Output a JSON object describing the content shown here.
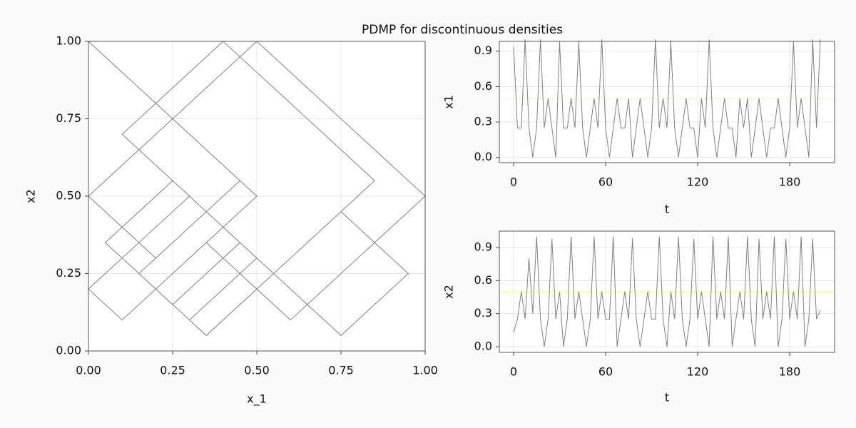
{
  "title": "PDMP for discontinuous densities",
  "chart_data": [
    {
      "type": "line",
      "xlabel": "x_1",
      "ylabel": "x2",
      "color": "#808080",
      "grid": true,
      "xlim": [
        0,
        1
      ],
      "ylim": [
        0,
        1
      ],
      "xticks": [
        {
          "value": 0,
          "label": "0.00"
        },
        {
          "value": 0.25,
          "label": "0.25"
        },
        {
          "value": 0.5,
          "label": "0.50"
        },
        {
          "value": 0.75,
          "label": "0.75"
        },
        {
          "value": 1,
          "label": "1.00"
        }
      ],
      "yticks": [
        {
          "value": 0,
          "label": "0.00"
        },
        {
          "value": 0.25,
          "label": "0.25"
        },
        {
          "value": 0.5,
          "label": "0.50"
        },
        {
          "value": 0.75,
          "label": "0.75"
        },
        {
          "value": 1,
          "label": "1.00"
        }
      ],
      "x": [
        0.25,
        0.5,
        0.25,
        0.0,
        0.2,
        0.45,
        0.0,
        0.25,
        0.5,
        0.75,
        1.0,
        0.6,
        0.35,
        0.1,
        0.0,
        0.3,
        0.55,
        0.85,
        0.4,
        0.1,
        0.25,
        0.05,
        0.35,
        0.75,
        0.95,
        0.75,
        0.45,
        0.25,
        0.05,
        0.25,
        0.5,
        0.3,
        0.15,
        0.45,
        0.25,
        0.0
      ],
      "y": [
        0.25,
        0.5,
        0.75,
        0.5,
        0.3,
        0.55,
        1.0,
        0.75,
        1.0,
        0.75,
        0.5,
        0.1,
        0.35,
        0.1,
        0.2,
        0.5,
        0.25,
        0.55,
        1.0,
        0.7,
        0.55,
        0.35,
        0.05,
        0.45,
        0.25,
        0.05,
        0.35,
        0.15,
        0.35,
        0.55,
        0.3,
        0.1,
        0.25,
        0.55,
        0.75,
        0.5
      ]
    },
    {
      "type": "line",
      "xlabel": "t",
      "ylabel": "x1",
      "color": "#808080",
      "grid": true,
      "reference_line": {
        "value": 0.5,
        "color": "#ffff99"
      },
      "xlim": [
        -9.3,
        209.3
      ],
      "ylim": [
        -0.044,
        0.983
      ],
      "xticks": [
        0,
        60,
        120,
        180
      ],
      "yticks": [
        {
          "value": 0,
          "label": "0.0"
        },
        0.3,
        0.6,
        0.9
      ],
      "x": [
        0,
        2.5,
        5,
        7.5,
        10,
        12.5,
        15,
        17.5,
        20,
        22.5,
        25,
        27.5,
        30,
        32.5,
        35,
        37.5,
        40,
        42.5,
        45,
        47.5,
        50,
        52.5,
        55,
        57.5,
        60,
        62.5,
        65,
        67.5,
        70,
        72.5,
        75,
        77.5,
        80,
        82.5,
        85,
        87.5,
        90,
        92.5,
        95,
        97.5,
        100,
        102.5,
        105,
        107.5,
        110,
        112.5,
        115,
        117.5,
        120,
        122.5,
        125,
        127.5,
        130,
        132.5,
        135,
        137.5,
        140,
        142.5,
        145,
        147.5,
        150,
        152.5,
        155,
        157.5,
        160,
        162.5,
        165,
        167.5,
        170,
        172.5,
        175,
        177.5,
        180,
        182.5,
        185,
        187.5,
        190,
        192.5,
        195,
        197.5,
        200
      ],
      "y": [
        0.94,
        0.25,
        0.25,
        1.0,
        0.25,
        0.0,
        0.25,
        1.0,
        0.25,
        0.5,
        0.25,
        0.0,
        0.98,
        0.25,
        0.25,
        0.5,
        0.25,
        0.98,
        0.25,
        0.0,
        0.25,
        0.5,
        0.25,
        1.0,
        0.25,
        0.0,
        0.25,
        0.5,
        0.25,
        0.25,
        0.5,
        0.0,
        0.25,
        0.5,
        0.25,
        0.0,
        0.25,
        1.0,
        0.25,
        0.5,
        0.25,
        0.98,
        0.25,
        0.0,
        0.25,
        0.5,
        0.25,
        0.25,
        0.0,
        0.5,
        0.25,
        1.0,
        0.25,
        0.0,
        0.25,
        0.5,
        0.25,
        0.25,
        0.0,
        0.5,
        0.25,
        0.5,
        0.0,
        0.25,
        0.5,
        0.25,
        0.0,
        0.25,
        0.25,
        0.5,
        0.25,
        0.0,
        0.25,
        0.98,
        0.25,
        0.5,
        0.25,
        0.0,
        1.0,
        0.25,
        1.0
      ]
    },
    {
      "type": "line",
      "xlabel": "t",
      "ylabel": "x2",
      "color": "#808080",
      "grid": true,
      "reference_line": {
        "value": 0.5,
        "color": "#ffff99"
      },
      "xlim": [
        -9.3,
        209.3
      ],
      "ylim": [
        -0.052,
        1.049
      ],
      "xticks": [
        0,
        60,
        120,
        180
      ],
      "yticks": [
        {
          "value": 0,
          "label": "0.0"
        },
        0.3,
        0.6,
        0.9
      ],
      "x": [
        0,
        2.5,
        5,
        7.5,
        10,
        12.5,
        15,
        17.5,
        20,
        22.5,
        25,
        27.5,
        30,
        32.5,
        35,
        37.5,
        40,
        42.5,
        45,
        47.5,
        50,
        52.5,
        55,
        57.5,
        60,
        62.5,
        65,
        67.5,
        70,
        72.5,
        75,
        77.5,
        80,
        82.5,
        85,
        87.5,
        90,
        92.5,
        95,
        97.5,
        100,
        102.5,
        105,
        107.5,
        110,
        112.5,
        115,
        117.5,
        120,
        122.5,
        125,
        127.5,
        130,
        132.5,
        135,
        137.5,
        140,
        142.5,
        145,
        147.5,
        150,
        152.5,
        155,
        157.5,
        160,
        162.5,
        165,
        167.5,
        170,
        172.5,
        175,
        177.5,
        180,
        182.5,
        185,
        187.5,
        190,
        192.5,
        195,
        197.5,
        200
      ],
      "y": [
        0.13,
        0.25,
        0.5,
        0.25,
        0.8,
        0.3,
        1.0,
        0.25,
        0.0,
        0.25,
        0.98,
        0.25,
        0.5,
        0.0,
        0.25,
        1.0,
        0.25,
        0.5,
        0.25,
        0.0,
        0.25,
        1.0,
        0.25,
        0.5,
        0.25,
        0.25,
        1.0,
        0.0,
        0.25,
        0.5,
        0.25,
        0.98,
        0.25,
        0.0,
        0.25,
        0.5,
        0.25,
        0.25,
        1.0,
        0.25,
        0.0,
        0.5,
        0.25,
        1.0,
        0.25,
        0.0,
        0.25,
        0.98,
        0.25,
        0.5,
        0.25,
        0.0,
        1.0,
        0.25,
        0.5,
        0.25,
        1.0,
        0.0,
        0.25,
        0.5,
        0.25,
        1.0,
        0.25,
        0.0,
        0.98,
        0.25,
        0.5,
        0.25,
        1.0,
        0.0,
        0.25,
        0.98,
        0.25,
        0.5,
        0.25,
        1.0,
        0.0,
        0.25,
        0.98,
        0.25,
        0.33
      ]
    }
  ]
}
